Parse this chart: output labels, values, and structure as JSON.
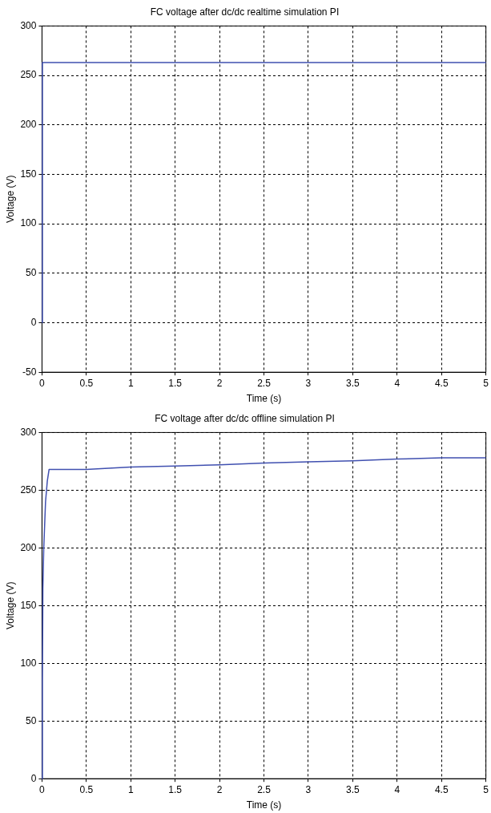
{
  "chart_data": [
    {
      "type": "line",
      "title": "FC voltage after dc/dc realtime simulation PI",
      "xlabel": "Time (s)",
      "ylabel": "Voltage (V)",
      "series": [
        {
          "color": "#4050b0",
          "x": [
            0,
            0.005,
            1,
            2,
            3,
            4,
            5
          ],
          "values": [
            0,
            263,
            263,
            263,
            263,
            263,
            263
          ]
        }
      ],
      "xlim": [
        0,
        5
      ],
      "xticks": [
        0,
        0.5,
        1,
        1.5,
        2,
        2.5,
        3,
        3.5,
        4,
        4.5,
        5
      ],
      "ylim": [
        -50,
        300
      ],
      "yticks": [
        -50,
        0,
        50,
        100,
        150,
        200,
        250,
        300
      ],
      "grid": true,
      "legend": false,
      "marker": "none",
      "line_style": "solid"
    },
    {
      "type": "line",
      "title": "FC voltage after dc/dc offline simulation PI",
      "xlabel": "Time (s)",
      "ylabel": "Voltage (V)",
      "series": [
        {
          "color": "#4050b0",
          "x": [
            0,
            0.005,
            0.01,
            0.02,
            0.04,
            0.06,
            0.08,
            0.5,
            1,
            1.5,
            2,
            2.5,
            3,
            3.5,
            4,
            4.5,
            5
          ],
          "values": [
            0,
            85,
            165,
            200,
            240,
            258,
            268,
            268,
            270,
            271,
            272,
            273.5,
            274.5,
            275.5,
            277,
            278,
            278
          ]
        }
      ],
      "xlim": [
        0,
        5
      ],
      "xticks": [
        0,
        0.5,
        1,
        1.5,
        2,
        2.5,
        3,
        3.5,
        4,
        4.5,
        5
      ],
      "ylim": [
        0,
        300
      ],
      "yticks": [
        0,
        50,
        100,
        150,
        200,
        250,
        300
      ],
      "grid": true,
      "legend": false,
      "marker": "none",
      "line_style": "solid"
    }
  ]
}
